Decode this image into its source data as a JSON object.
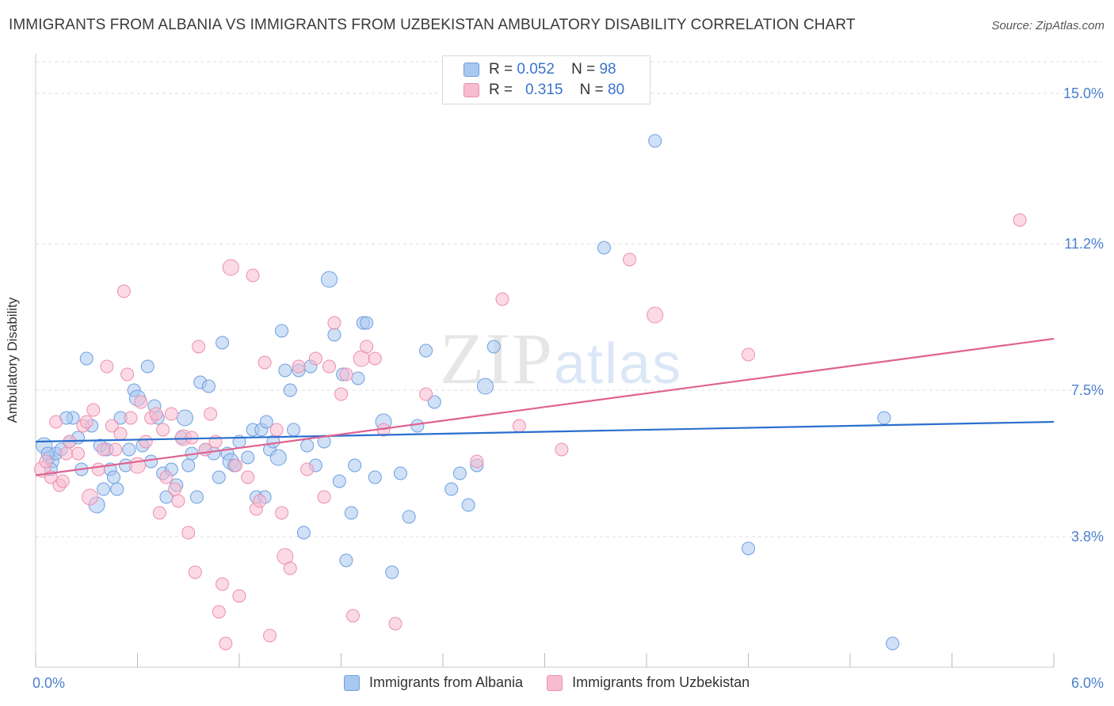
{
  "title": "IMMIGRANTS FROM ALBANIA VS IMMIGRANTS FROM UZBEKISTAN AMBULATORY DISABILITY CORRELATION CHART",
  "source": "Source: ZipAtlas.com",
  "watermark": {
    "zip": "ZIP",
    "atlas": "atlas"
  },
  "legend": {
    "series1": {
      "r_label": "R =",
      "r_value": "0.052",
      "n_label": "N =",
      "n_value": "98"
    },
    "series2": {
      "r_label": "R =",
      "r_value": "0.315",
      "n_label": "N =",
      "n_value": "80"
    }
  },
  "colors": {
    "albania_fill": "#a9c8f0",
    "albania_stroke": "#6e9fe0",
    "albania_line": "#2a6fcf",
    "uzbekistan_fill": "#f7bcd0",
    "uzbekistan_stroke": "#ec8fae",
    "uzbekistan_line": "#e0628f",
    "tick_text": "#4a7fd0",
    "grid": "#dddddd"
  },
  "chart_data": {
    "type": "scatter",
    "title": "IMMIGRANTS FROM ALBANIA VS IMMIGRANTS FROM UZBEKISTAN AMBULATORY DISABILITY CORRELATION CHART",
    "xlabel": "",
    "ylabel": "Ambulatory Disability",
    "xlim": [
      0,
      6.0
    ],
    "ylim": [
      0.5,
      15.8
    ],
    "x_tick_labels": [
      "0.0%",
      "6.0%"
    ],
    "y_ticks": [
      3.8,
      7.5,
      11.2,
      15.0
    ],
    "y_tick_labels": [
      "3.8%",
      "7.5%",
      "11.2%",
      "15.0%"
    ],
    "grid": "horizontal dashed",
    "legend_position": "top-center",
    "series": [
      {
        "name": "Immigrants from Albania",
        "r": 0.052,
        "n": 98,
        "trend": [
          [
            0,
            6.2
          ],
          [
            6.0,
            6.7
          ]
        ],
        "points": [
          [
            0.05,
            6.1
          ],
          [
            0.08,
            5.8
          ],
          [
            0.1,
            5.7
          ],
          [
            0.12,
            5.9
          ],
          [
            0.15,
            6.0
          ],
          [
            0.2,
            6.2
          ],
          [
            0.22,
            6.8
          ],
          [
            0.25,
            6.3
          ],
          [
            0.27,
            5.5
          ],
          [
            0.3,
            8.3
          ],
          [
            0.33,
            6.6
          ],
          [
            0.36,
            4.6
          ],
          [
            0.38,
            6.1
          ],
          [
            0.4,
            5.0
          ],
          [
            0.42,
            6.0
          ],
          [
            0.44,
            5.5
          ],
          [
            0.46,
            5.3
          ],
          [
            0.48,
            5.0
          ],
          [
            0.5,
            6.8
          ],
          [
            0.53,
            5.6
          ],
          [
            0.55,
            6.0
          ],
          [
            0.58,
            7.5
          ],
          [
            0.6,
            7.3
          ],
          [
            0.63,
            6.1
          ],
          [
            0.66,
            8.1
          ],
          [
            0.68,
            5.7
          ],
          [
            0.7,
            7.1
          ],
          [
            0.72,
            6.8
          ],
          [
            0.75,
            5.4
          ],
          [
            0.77,
            4.8
          ],
          [
            0.8,
            5.5
          ],
          [
            0.83,
            5.1
          ],
          [
            0.86,
            6.3
          ],
          [
            0.88,
            6.8
          ],
          [
            0.9,
            5.6
          ],
          [
            0.92,
            5.9
          ],
          [
            0.95,
            4.8
          ],
          [
            0.97,
            7.7
          ],
          [
            1.0,
            6.0
          ],
          [
            1.02,
            7.6
          ],
          [
            1.05,
            5.9
          ],
          [
            1.08,
            5.3
          ],
          [
            1.1,
            8.7
          ],
          [
            1.13,
            5.9
          ],
          [
            1.15,
            5.7
          ],
          [
            1.17,
            5.6
          ],
          [
            1.2,
            6.2
          ],
          [
            1.25,
            5.8
          ],
          [
            1.28,
            6.5
          ],
          [
            1.3,
            4.8
          ],
          [
            1.33,
            6.5
          ],
          [
            1.35,
            4.8
          ],
          [
            1.36,
            6.7
          ],
          [
            1.38,
            6.0
          ],
          [
            1.4,
            6.2
          ],
          [
            1.43,
            5.8
          ],
          [
            1.45,
            9.0
          ],
          [
            1.47,
            8.0
          ],
          [
            1.5,
            7.5
          ],
          [
            1.52,
            6.5
          ],
          [
            1.55,
            8.0
          ],
          [
            1.58,
            3.9
          ],
          [
            1.6,
            6.1
          ],
          [
            1.62,
            8.1
          ],
          [
            1.65,
            5.6
          ],
          [
            1.7,
            6.2
          ],
          [
            1.73,
            10.3
          ],
          [
            1.76,
            8.9
          ],
          [
            1.79,
            5.2
          ],
          [
            1.81,
            7.9
          ],
          [
            1.83,
            3.2
          ],
          [
            1.86,
            4.4
          ],
          [
            1.88,
            5.6
          ],
          [
            1.9,
            7.8
          ],
          [
            1.93,
            9.2
          ],
          [
            1.95,
            9.2
          ],
          [
            2.0,
            5.3
          ],
          [
            2.05,
            6.7
          ],
          [
            2.1,
            2.9
          ],
          [
            2.15,
            5.4
          ],
          [
            2.2,
            4.3
          ],
          [
            2.25,
            6.6
          ],
          [
            2.3,
            8.5
          ],
          [
            2.35,
            7.2
          ],
          [
            2.45,
            5.0
          ],
          [
            2.5,
            5.4
          ],
          [
            2.55,
            4.6
          ],
          [
            2.6,
            5.6
          ],
          [
            2.65,
            7.6
          ],
          [
            2.7,
            8.6
          ],
          [
            3.35,
            11.1
          ],
          [
            3.65,
            13.8
          ],
          [
            4.2,
            3.5
          ],
          [
            5.0,
            6.8
          ],
          [
            5.05,
            1.1
          ],
          [
            0.07,
            5.9
          ],
          [
            0.09,
            5.5
          ],
          [
            0.18,
            6.8
          ]
        ]
      },
      {
        "name": "Immigrants from Uzbekistan",
        "r": 0.315,
        "n": 80,
        "trend": [
          [
            0,
            5.35
          ],
          [
            6.0,
            8.8
          ]
        ],
        "points": [
          [
            0.04,
            5.5
          ],
          [
            0.06,
            5.7
          ],
          [
            0.09,
            5.3
          ],
          [
            0.12,
            6.7
          ],
          [
            0.14,
            5.1
          ],
          [
            0.16,
            5.2
          ],
          [
            0.18,
            5.9
          ],
          [
            0.2,
            6.2
          ],
          [
            0.25,
            5.9
          ],
          [
            0.28,
            6.6
          ],
          [
            0.3,
            6.7
          ],
          [
            0.32,
            4.8
          ],
          [
            0.34,
            7.0
          ],
          [
            0.37,
            5.5
          ],
          [
            0.4,
            6.0
          ],
          [
            0.42,
            8.1
          ],
          [
            0.45,
            6.6
          ],
          [
            0.47,
            6.0
          ],
          [
            0.5,
            6.4
          ],
          [
            0.52,
            10.0
          ],
          [
            0.54,
            7.9
          ],
          [
            0.56,
            6.8
          ],
          [
            0.6,
            5.6
          ],
          [
            0.62,
            7.2
          ],
          [
            0.65,
            6.2
          ],
          [
            0.68,
            6.8
          ],
          [
            0.71,
            6.9
          ],
          [
            0.73,
            4.4
          ],
          [
            0.75,
            6.5
          ],
          [
            0.77,
            5.3
          ],
          [
            0.8,
            6.9
          ],
          [
            0.82,
            5.0
          ],
          [
            0.84,
            4.7
          ],
          [
            0.87,
            6.3
          ],
          [
            0.9,
            3.9
          ],
          [
            0.92,
            6.3
          ],
          [
            0.94,
            2.9
          ],
          [
            0.96,
            8.6
          ],
          [
            1.0,
            6.0
          ],
          [
            1.03,
            6.9
          ],
          [
            1.06,
            6.2
          ],
          [
            1.08,
            1.9
          ],
          [
            1.1,
            2.6
          ],
          [
            1.12,
            1.1
          ],
          [
            1.15,
            10.6
          ],
          [
            1.18,
            5.6
          ],
          [
            1.2,
            2.3
          ],
          [
            1.25,
            5.3
          ],
          [
            1.28,
            10.4
          ],
          [
            1.3,
            4.5
          ],
          [
            1.32,
            4.7
          ],
          [
            1.35,
            8.2
          ],
          [
            1.38,
            1.3
          ],
          [
            1.42,
            6.5
          ],
          [
            1.45,
            4.4
          ],
          [
            1.47,
            3.3
          ],
          [
            1.5,
            3.0
          ],
          [
            1.55,
            8.1
          ],
          [
            1.6,
            5.5
          ],
          [
            1.65,
            8.3
          ],
          [
            1.7,
            4.8
          ],
          [
            1.73,
            8.1
          ],
          [
            1.76,
            9.2
          ],
          [
            1.8,
            7.4
          ],
          [
            1.83,
            7.9
          ],
          [
            1.87,
            1.8
          ],
          [
            1.92,
            8.3
          ],
          [
            1.95,
            8.6
          ],
          [
            2.0,
            8.3
          ],
          [
            2.05,
            6.5
          ],
          [
            2.12,
            1.6
          ],
          [
            2.3,
            7.4
          ],
          [
            2.6,
            5.7
          ],
          [
            2.75,
            9.8
          ],
          [
            2.85,
            6.6
          ],
          [
            3.1,
            6.0
          ],
          [
            3.5,
            10.8
          ],
          [
            3.65,
            9.4
          ],
          [
            4.2,
            8.4
          ],
          [
            5.8,
            11.8
          ]
        ]
      }
    ],
    "bottom_legend": [
      "Immigrants from Albania",
      "Immigrants from Uzbekistan"
    ]
  }
}
